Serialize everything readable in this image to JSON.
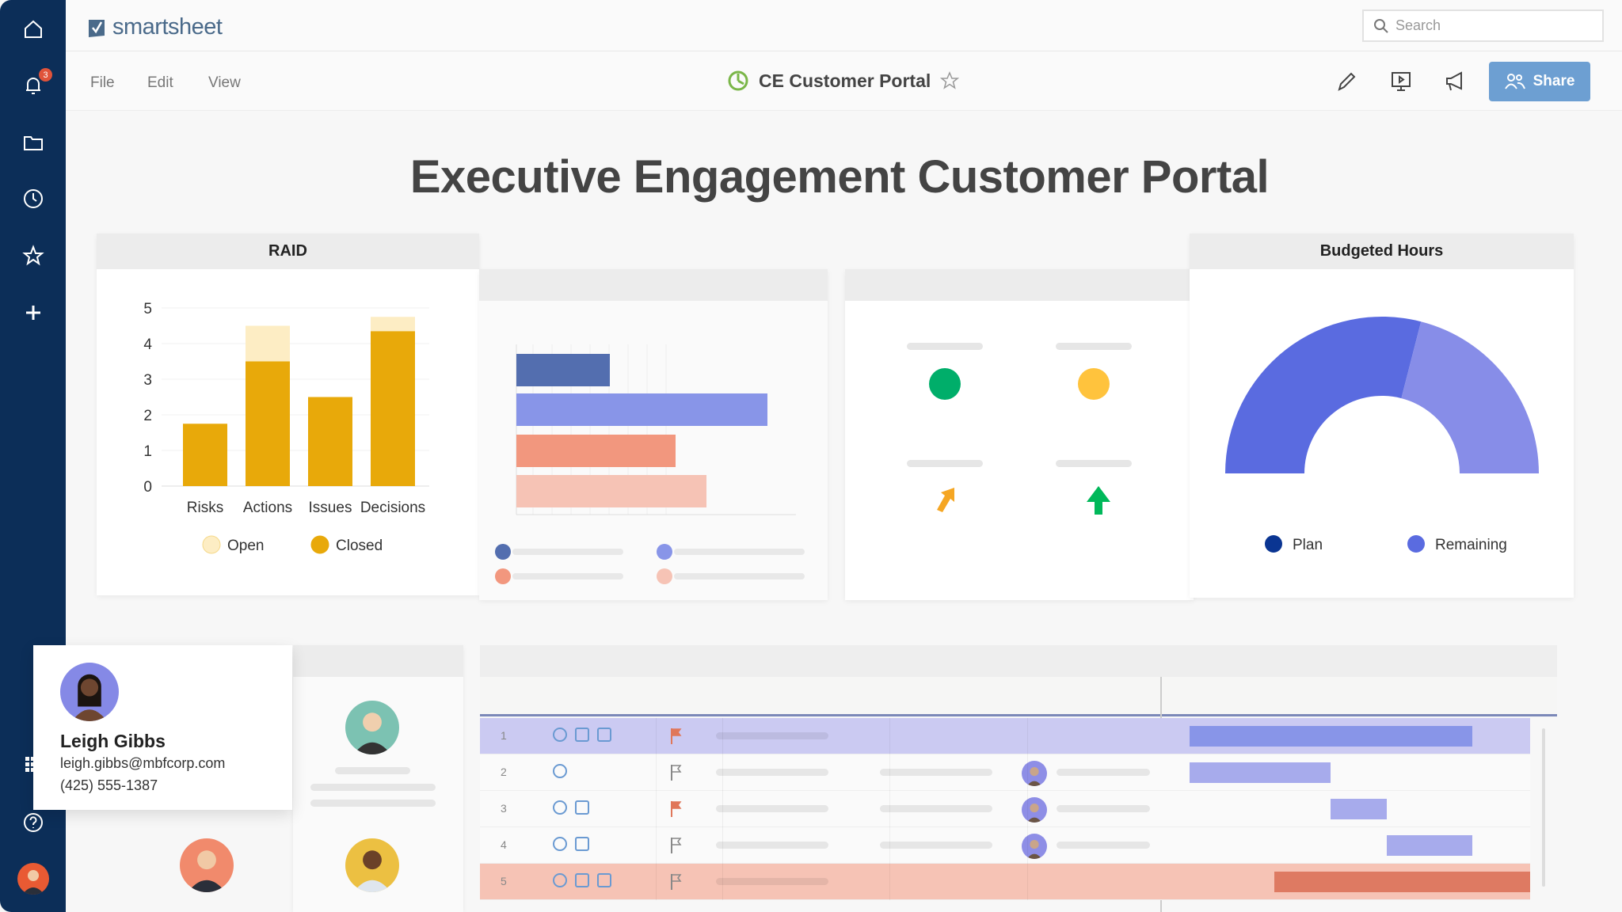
{
  "app": {
    "logo_text": "smartsheet",
    "search_placeholder": "Search",
    "notification_count": "3"
  },
  "menu": {
    "file": "File",
    "edit": "Edit",
    "view": "View"
  },
  "document": {
    "title": "CE Customer Portal",
    "share_label": "Share"
  },
  "dashboard": {
    "title": "Executive Engagement Customer Portal"
  },
  "raid": {
    "title": "RAID"
  },
  "budget": {
    "title": "Budgeted Hours"
  },
  "contact": {
    "name": "Leigh Gibbs",
    "email": "leigh.gibbs@mbfcorp.com",
    "phone": "(425) 555-1387"
  },
  "grid": {
    "rows": [
      "1",
      "2",
      "3",
      "4",
      "5"
    ]
  },
  "colors": {
    "sidebar": "#0c2e58",
    "share": "#6d9fd2",
    "closed": "#e8a90a",
    "open": "#fdedc4",
    "plan": "#5a6be0",
    "remaining": "#878de8",
    "status_green": "#00ae6a",
    "status_yellow": "#ffc33d"
  },
  "chart_data": [
    {
      "type": "bar",
      "stacked": true,
      "title": "RAID",
      "categories": [
        "Risks",
        "Actions",
        "Issues",
        "Decisions"
      ],
      "series": [
        {
          "name": "Closed",
          "values": [
            1.75,
            3.5,
            2.5,
            4.35
          ]
        },
        {
          "name": "Open",
          "values": [
            0,
            1,
            0,
            0.4
          ]
        }
      ],
      "ylim": [
        0,
        5
      ],
      "yticks": [
        "0",
        "1",
        "2",
        "3",
        "4",
        "5"
      ],
      "grid": true,
      "legend": "bottom"
    },
    {
      "type": "pie",
      "variant": "half-donut",
      "title": "Budgeted Hours",
      "labels": [
        "Plan",
        "Remaining"
      ],
      "values": [
        58,
        42
      ],
      "legend": "bottom"
    }
  ]
}
